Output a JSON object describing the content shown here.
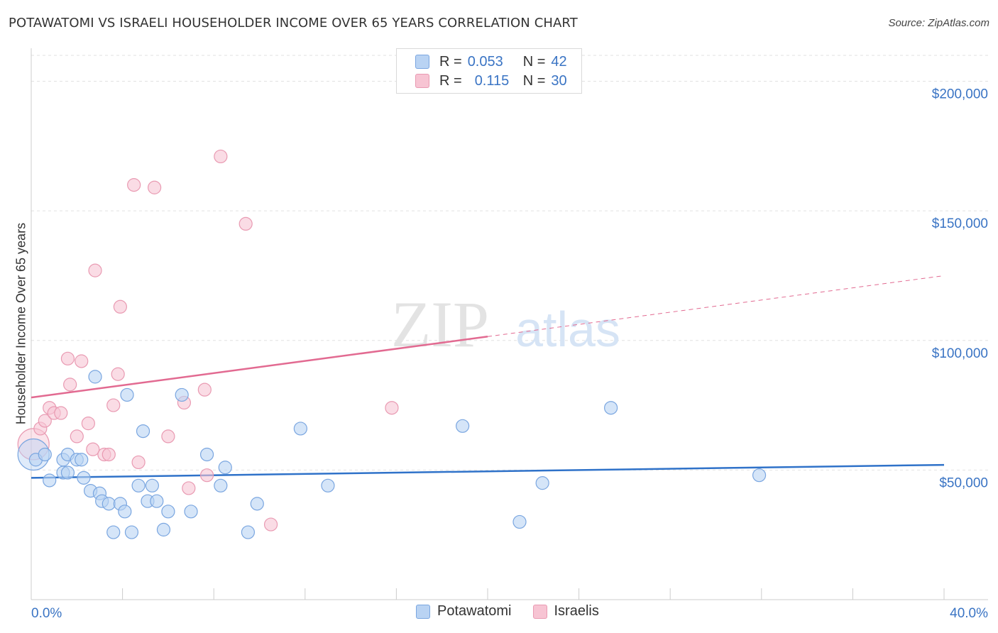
{
  "title": "POTAWATOMI VS ISRAELI HOUSEHOLDER INCOME OVER 65 YEARS CORRELATION CHART",
  "source": "Source: ZipAtlas.com",
  "watermark": {
    "zip": "ZIP",
    "atlas": "atlas"
  },
  "legend": {
    "rows": [
      {
        "r_label": "R =",
        "r_value": "0.053",
        "n_label": "N =",
        "n_value": "42"
      },
      {
        "r_label": "R =",
        "r_value": "0.115",
        "n_label": "N =",
        "n_value": "30"
      }
    ]
  },
  "bottom_legend": [
    "Potawatomi",
    "Israelis"
  ],
  "colors": {
    "blue_fill": "#b9d3f3",
    "blue_stroke": "#7aa6e0",
    "blue_line": "#2f72c9",
    "pink_fill": "#f7c4d3",
    "pink_stroke": "#e99ab2",
    "pink_line": "#e26a91",
    "axis_text": "#3a74c4"
  },
  "chart_data": {
    "type": "scatter",
    "title": "POTAWATOMI VS ISRAELI HOUSEHOLDER INCOME OVER 65 YEARS CORRELATION CHART",
    "xlabel": "",
    "ylabel": "Householder Income Over 65 years",
    "xlim": [
      0,
      40
    ],
    "ylim": [
      0,
      210000
    ],
    "x_tick_labels": [
      "0.0%",
      "40.0%"
    ],
    "y_ticks": [
      50000,
      100000,
      150000,
      200000
    ],
    "y_tick_labels": [
      "$50,000",
      "$100,000",
      "$150,000",
      "$200,000"
    ],
    "grid": true,
    "series": [
      {
        "name": "Potawatomi",
        "points": [
          [
            0.1,
            56000
          ],
          [
            0.2,
            54000
          ],
          [
            0.8,
            46000
          ],
          [
            0.6,
            56000
          ],
          [
            1.4,
            54000
          ],
          [
            1.4,
            49000
          ],
          [
            1.6,
            49000
          ],
          [
            1.6,
            56000
          ],
          [
            2.0,
            54000
          ],
          [
            2.2,
            54000
          ],
          [
            2.3,
            47000
          ],
          [
            2.6,
            42000
          ],
          [
            2.8,
            86000
          ],
          [
            3.0,
            41000
          ],
          [
            3.1,
            38000
          ],
          [
            3.4,
            37000
          ],
          [
            3.6,
            26000
          ],
          [
            3.9,
            37000
          ],
          [
            4.1,
            34000
          ],
          [
            4.2,
            79000
          ],
          [
            4.4,
            26000
          ],
          [
            4.7,
            44000
          ],
          [
            4.9,
            65000
          ],
          [
            5.1,
            38000
          ],
          [
            5.3,
            44000
          ],
          [
            5.5,
            38000
          ],
          [
            5.8,
            27000
          ],
          [
            6.0,
            34000
          ],
          [
            6.6,
            79000
          ],
          [
            7.0,
            34000
          ],
          [
            7.7,
            56000
          ],
          [
            8.3,
            44000
          ],
          [
            8.5,
            51000
          ],
          [
            9.5,
            26000
          ],
          [
            9.9,
            37000
          ],
          [
            11.8,
            66000
          ],
          [
            13.0,
            44000
          ],
          [
            18.9,
            67000
          ],
          [
            21.4,
            30000
          ],
          [
            22.4,
            45000
          ],
          [
            25.4,
            74000
          ],
          [
            31.9,
            48000
          ]
        ]
      },
      {
        "name": "Israelis",
        "points": [
          [
            0.1,
            60000
          ],
          [
            0.4,
            66000
          ],
          [
            0.6,
            69000
          ],
          [
            0.8,
            74000
          ],
          [
            1.0,
            72000
          ],
          [
            1.3,
            72000
          ],
          [
            1.6,
            93000
          ],
          [
            1.7,
            83000
          ],
          [
            2.0,
            63000
          ],
          [
            2.2,
            92000
          ],
          [
            2.5,
            68000
          ],
          [
            2.7,
            58000
          ],
          [
            2.8,
            127000
          ],
          [
            3.2,
            56000
          ],
          [
            3.4,
            56000
          ],
          [
            3.6,
            75000
          ],
          [
            3.8,
            87000
          ],
          [
            3.9,
            113000
          ],
          [
            4.5,
            160000
          ],
          [
            4.7,
            53000
          ],
          [
            5.4,
            159000
          ],
          [
            6.0,
            63000
          ],
          [
            6.7,
            76000
          ],
          [
            6.9,
            43000
          ],
          [
            7.6,
            81000
          ],
          [
            7.7,
            48000
          ],
          [
            8.3,
            171000
          ],
          [
            9.4,
            145000
          ],
          [
            10.5,
            29000
          ],
          [
            15.8,
            74000
          ]
        ]
      }
    ],
    "trendlines": [
      {
        "series": "Potawatomi",
        "from": [
          0,
          47000
        ],
        "to": [
          40,
          52000
        ],
        "dashed_from": null
      },
      {
        "series": "Israelis",
        "from": [
          0,
          78000
        ],
        "to": [
          40,
          125000
        ],
        "dashed_from": 20
      }
    ]
  }
}
